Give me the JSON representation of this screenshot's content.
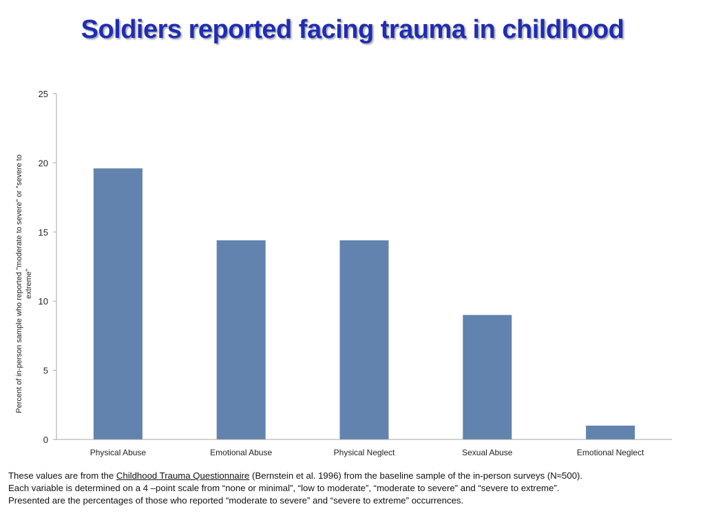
{
  "title": "Soldiers reported facing trauma in childhood",
  "caption": {
    "line1_pre": "These values are from the ",
    "line1_link": "Childhood Trauma Questionnaire",
    "line1_post": " (Bernstein et al. 1996) from the baseline sample of the in-person surveys (N≈500).",
    "line2": "Each variable is determined on a 4 –point scale from “none or minimal”, “low to moderate”, “moderate to severe” and “severe to extreme”.",
    "line3": "Presented are the percentages of those who reported “moderate to severe” and “severe to extreme” occurrences."
  },
  "chart_data": {
    "type": "bar",
    "categories": [
      "Physical Abuse",
      "Emotional Abuse",
      "Physical Neglect",
      "Sexual Abuse",
      "Emotional Neglect"
    ],
    "values": [
      19.6,
      14.4,
      14.4,
      9.0,
      1.0
    ],
    "ylabel_line1": "Percent of in-person sample who reported \"moderate to severe\" or \"severe to",
    "ylabel_line2": "extreme\"",
    "ylim": [
      0,
      25
    ],
    "yticks": [
      0,
      5,
      10,
      15,
      20,
      25
    ],
    "grid": false,
    "bar_color": "#6283ad",
    "axis_color": "#a6a6a6"
  }
}
